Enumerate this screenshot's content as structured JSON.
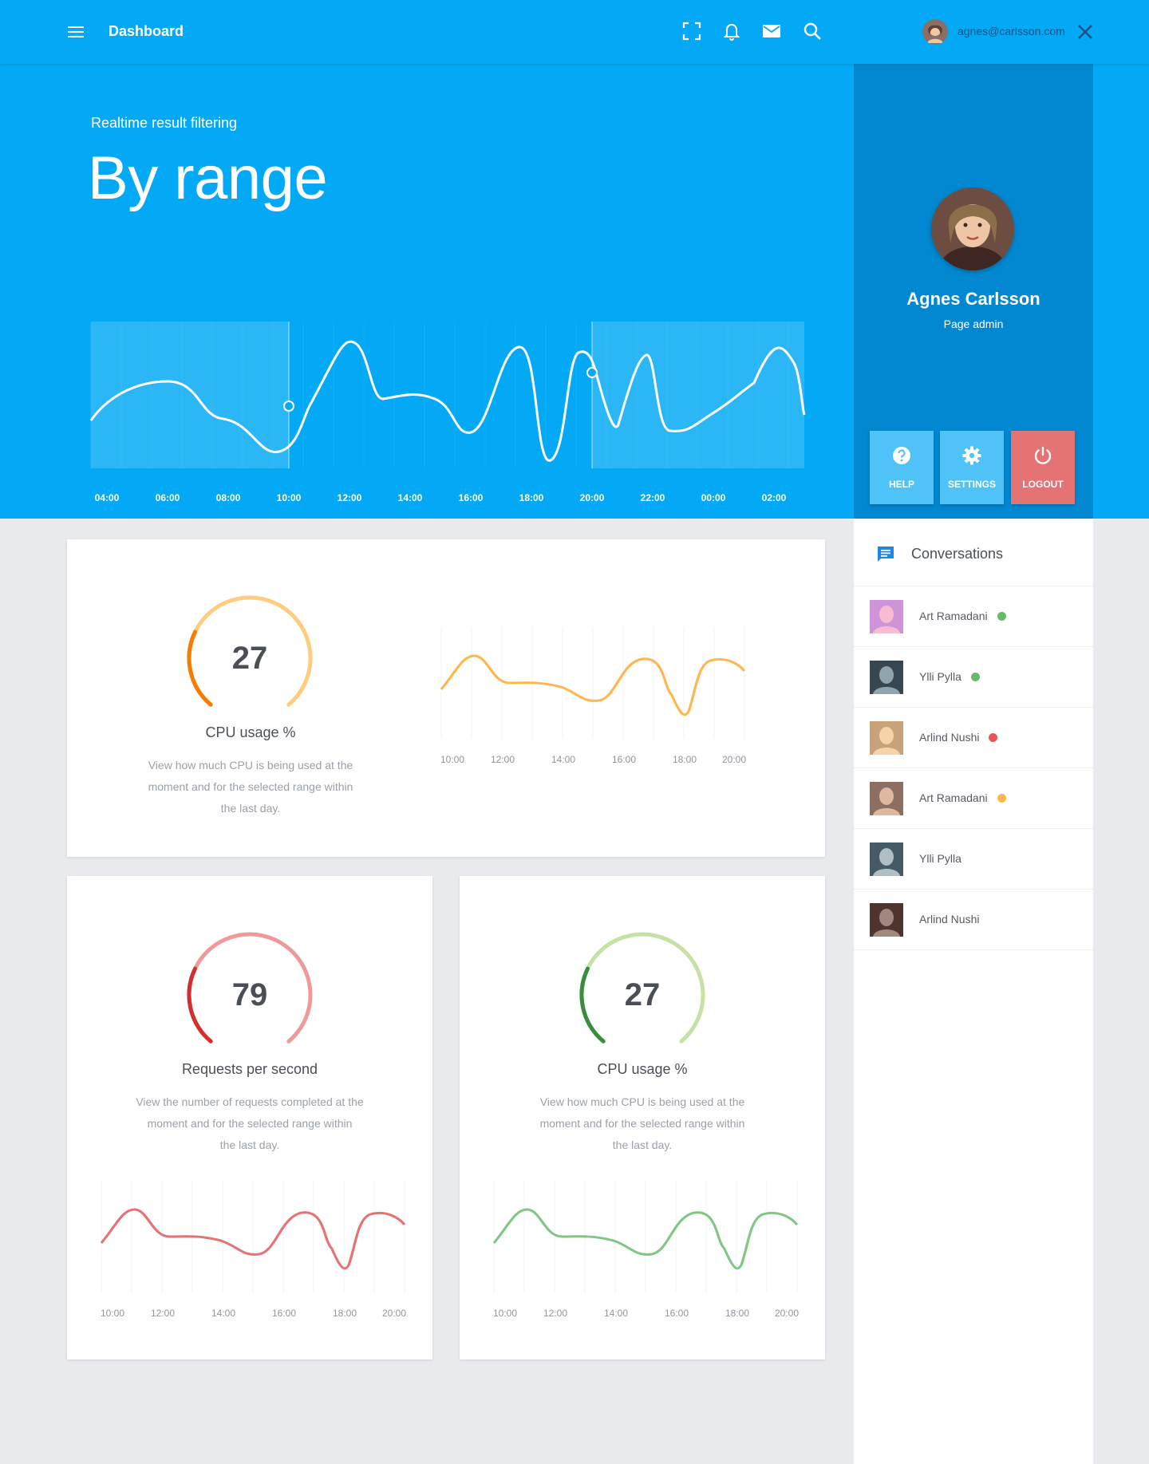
{
  "header": {
    "title": "Dashboard",
    "user_email": "agnes@carlsson.com"
  },
  "hero": {
    "subtitle": "Realtime result filtering",
    "headline": "By range"
  },
  "range_chart": {
    "type": "line",
    "x_ticks": [
      "04:00",
      "06:00",
      "08:00",
      "10:00",
      "12:00",
      "14:00",
      "16:00",
      "18:00",
      "20:00",
      "22:00",
      "00:00",
      "02:00"
    ],
    "selected_range": [
      "10:00",
      "20:00"
    ]
  },
  "profile": {
    "name": "Agnes Carlsson",
    "role": "Page admin",
    "buttons": {
      "help": "HELP",
      "settings": "SETTINGS",
      "logout": "LOGOUT"
    }
  },
  "conversations": {
    "title": "Conversations",
    "items": [
      {
        "name": "Art Ramadani",
        "status": "online",
        "status_color": "#66bb6a"
      },
      {
        "name": "Ylli Pylla",
        "status": "online",
        "status_color": "#66bb6a"
      },
      {
        "name": "Arlind Nushi",
        "status": "busy",
        "status_color": "#ef5350"
      },
      {
        "name": "Art Ramadani",
        "status": "away",
        "status_color": "#ffb74d"
      },
      {
        "name": "Ylli Pylla",
        "status": "",
        "status_color": ""
      },
      {
        "name": "Arlind Nushi",
        "status": "",
        "status_color": ""
      }
    ]
  },
  "cards": [
    {
      "gauge_value": "27",
      "title": "CPU usage %",
      "description": [
        "View how much CPU is being used at the",
        "moment and for the selected range within",
        "the last day."
      ],
      "x_ticks": [
        "10:00",
        "12:00",
        "14:00",
        "16:00",
        "18:00",
        "20:00"
      ],
      "color_dark": "#f57c00",
      "color_light": "#ffcc80",
      "line_color": "#ffb74d"
    },
    {
      "gauge_value": "79",
      "title": "Requests per second",
      "description": [
        "View the number of requests completed at the",
        "moment and for the selected range within",
        "the last day."
      ],
      "x_ticks": [
        "10:00",
        "12:00",
        "14:00",
        "16:00",
        "18:00",
        "20:00"
      ],
      "color_dark": "#d32f2f",
      "color_light": "#ef9a9a",
      "line_color": "#e57373"
    },
    {
      "gauge_value": "27",
      "title": "CPU usage %",
      "description": [
        "View how much CPU is being used at the",
        "moment and for the selected range within",
        "the last day."
      ],
      "x_ticks": [
        "10:00",
        "12:00",
        "14:00",
        "16:00",
        "18:00",
        "20:00"
      ],
      "color_dark": "#388e3c",
      "color_light": "#c5e1a5",
      "line_color": "#81c784"
    }
  ],
  "icons": {
    "menu": "menu-icon",
    "fullscreen": "fullscreen-icon",
    "notifications": "bell-icon",
    "messages": "mail-icon",
    "search": "search-icon",
    "close": "close-icon",
    "help": "help-circle-icon",
    "settings": "gear-icon",
    "logout": "power-icon",
    "conversations": "chat-icon"
  },
  "colors": {
    "primary": "#03a9f4",
    "primary_dark": "#0288d1",
    "button_light": "#4fc3f7",
    "logout": "#e57373"
  }
}
